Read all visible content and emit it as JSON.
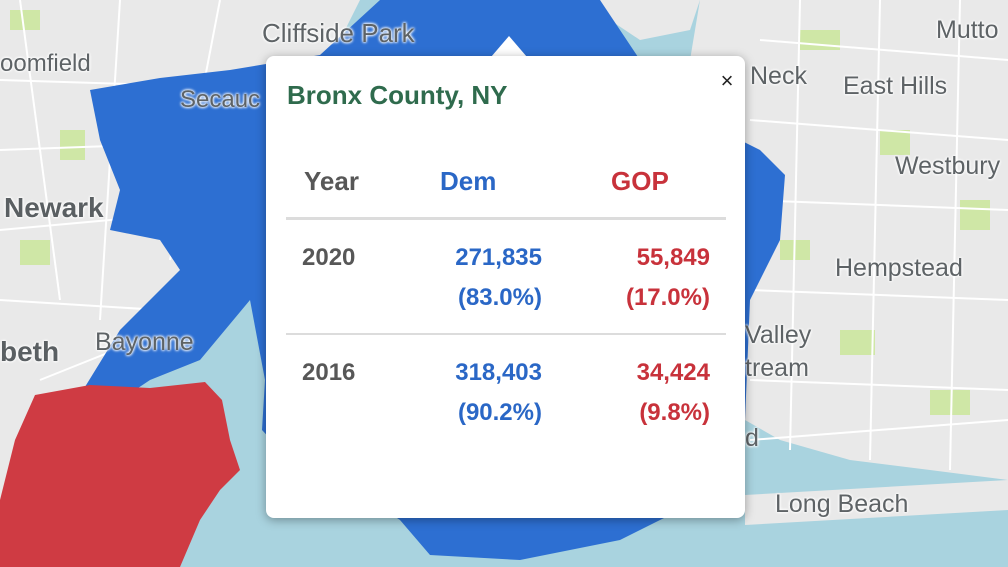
{
  "map": {
    "places": [
      {
        "name": "Cliffside Park"
      },
      {
        "name": "oomfield"
      },
      {
        "name": "Secauc"
      },
      {
        "name": "Newark"
      },
      {
        "name": "Bayonne"
      },
      {
        "name": "beth"
      },
      {
        "name": "Neck"
      },
      {
        "name": "East Hills"
      },
      {
        "name": "Mutto"
      },
      {
        "name": "Westbury"
      },
      {
        "name": "Hempstead"
      },
      {
        "name": "Valley"
      },
      {
        "name": "tream"
      },
      {
        "name": "d"
      },
      {
        "name": "Long Beach"
      }
    ],
    "colors": {
      "water": "#a9d3df",
      "land": "#e9e9e9",
      "park": "#cfe7a6",
      "dem_county": "#2d6fd2",
      "gop_county": "#cf3b43"
    }
  },
  "popup": {
    "title": "Bronx County, NY",
    "close_label": "×",
    "headers": {
      "year": "Year",
      "dem": "Dem",
      "gop": "GOP"
    },
    "rows": [
      {
        "year": "2020",
        "dem_votes": "271,835",
        "dem_pct": "(83.0%)",
        "gop_votes": "55,849",
        "gop_pct": "(17.0%)"
      },
      {
        "year": "2016",
        "dem_votes": "318,403",
        "dem_pct": "(90.2%)",
        "gop_votes": "34,424",
        "gop_pct": "(9.8%)"
      }
    ]
  }
}
